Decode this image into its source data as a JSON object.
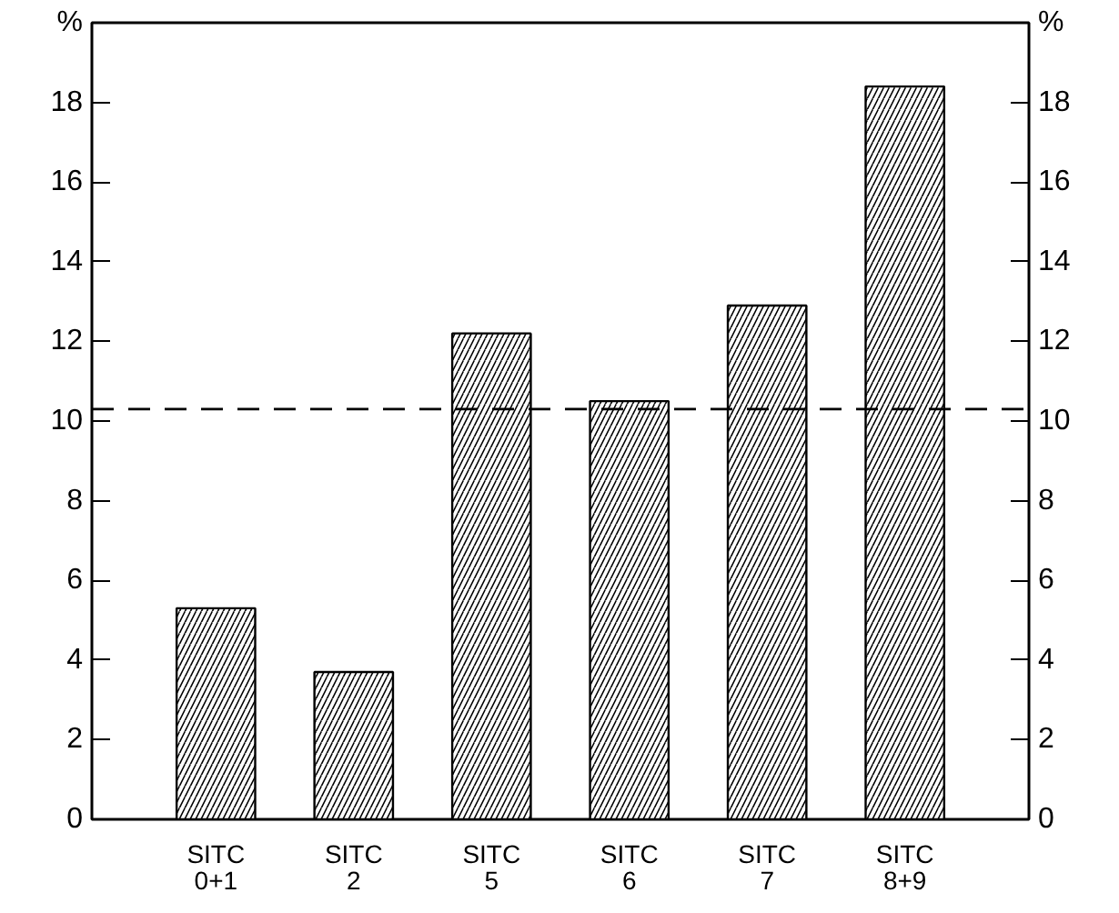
{
  "chart_data": {
    "type": "bar",
    "categories": [
      "SITC\n0+1",
      "SITC\n2",
      "SITC\n5",
      "SITC\n6",
      "SITC\n7",
      "SITC\n8+9"
    ],
    "values": [
      5.3,
      3.7,
      12.2,
      10.5,
      12.9,
      18.4
    ],
    "color": "#000000",
    "ylim": [
      0,
      20
    ],
    "yticks": [
      0,
      2,
      4,
      6,
      8,
      10,
      12,
      14,
      16,
      18,
      {
        "value": 20,
        "label": "%"
      }
    ],
    "y2lim": [
      0,
      20
    ],
    "y2ticks": [
      0,
      2,
      4,
      6,
      8,
      10,
      12,
      14,
      16,
      18,
      {
        "value": 20,
        "label": "%"
      }
    ],
    "ref_lines": [
      {
        "axis": "y",
        "value": 10.3,
        "line_style": "dashed",
        "color": "#000000"
      }
    ],
    "grid": false
  }
}
